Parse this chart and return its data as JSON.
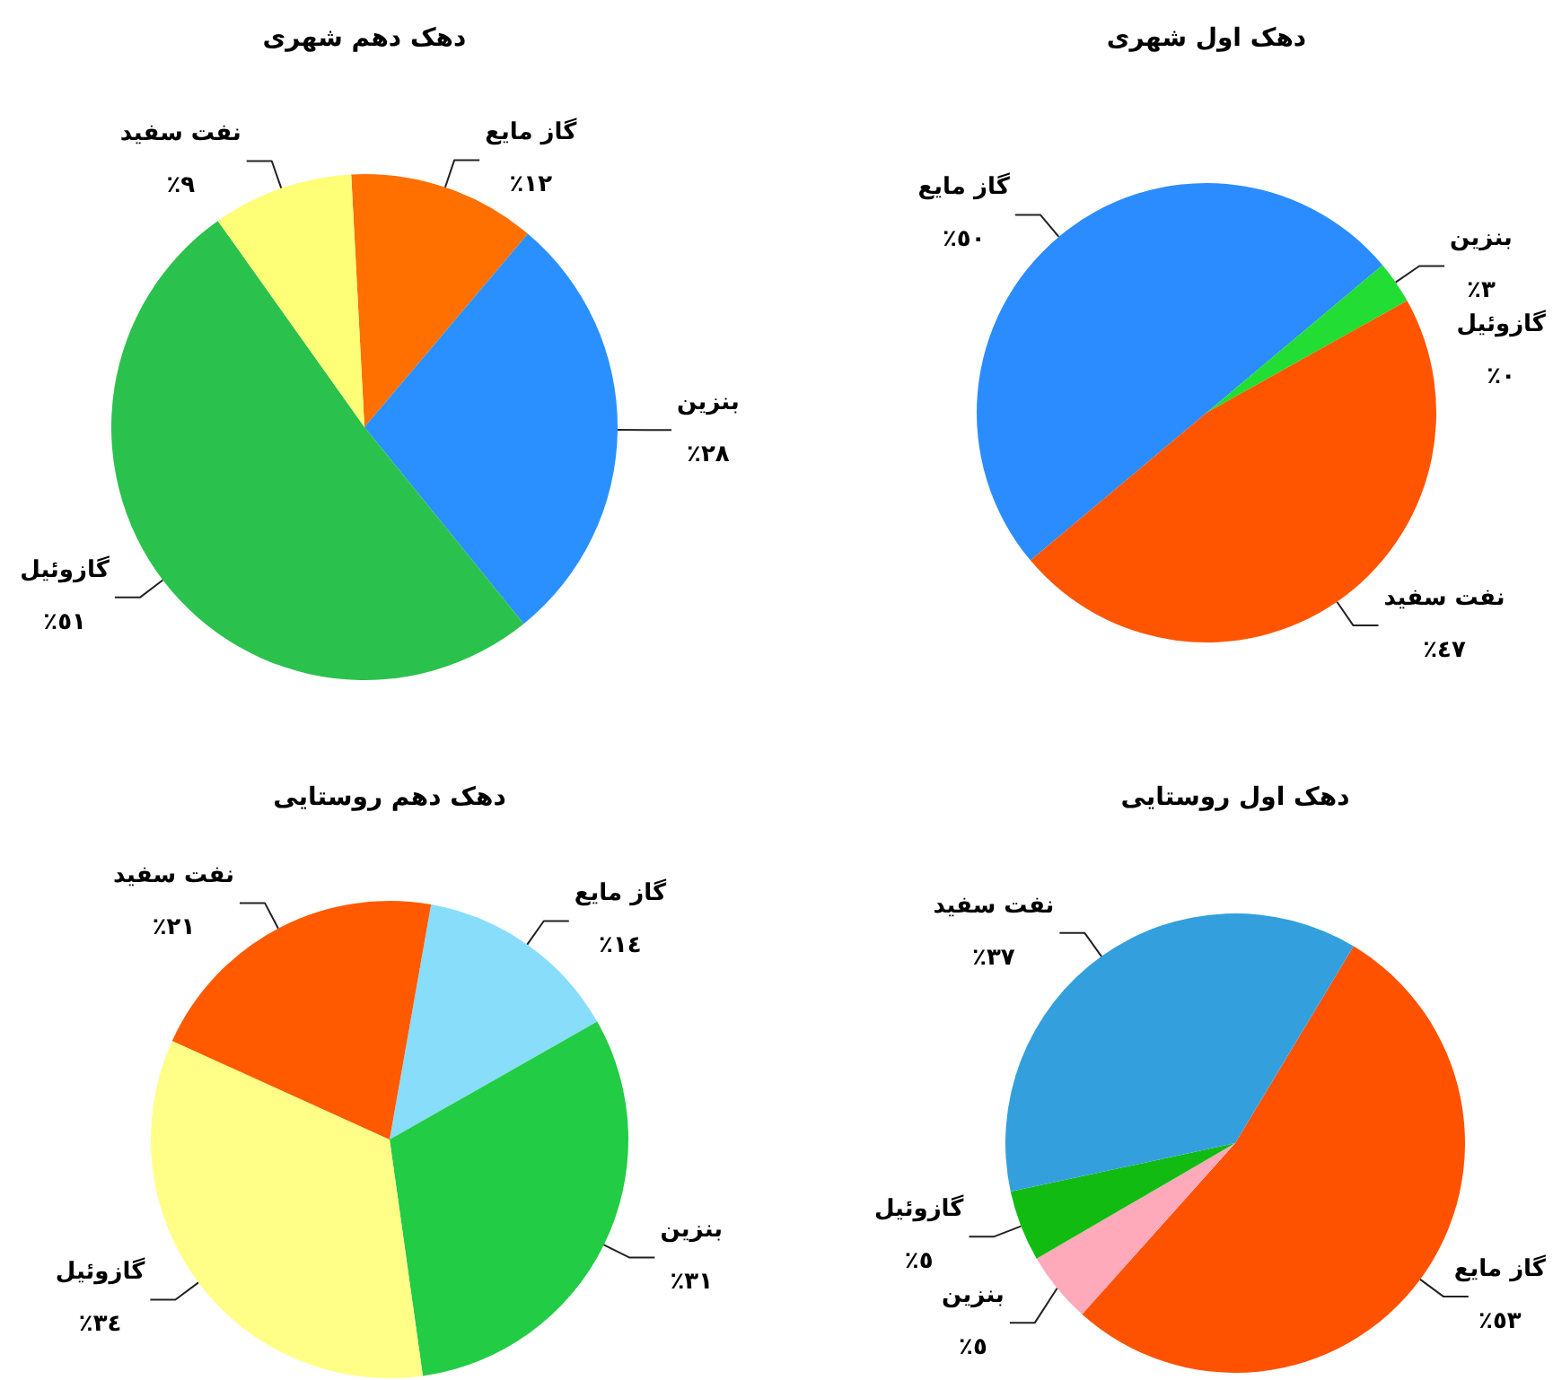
{
  "chart_data": [
    {
      "type": "pie",
      "title": "دهک اول شهری",
      "categories": [
        "گاز مایع",
        "بنزین",
        "گازوئیل",
        "نفت سفید"
      ],
      "values": [
        50,
        3,
        0,
        47
      ],
      "colors": [
        "#2b8cff",
        "#22dd33",
        "#339966",
        "#ff5500"
      ],
      "value_labels": [
        "٥٠٪",
        "٣٪",
        "٠٪",
        "٤٧٪"
      ]
    },
    {
      "type": "pie",
      "title": "دهک دهم شهری",
      "categories": [
        "گاز مایع",
        "بنزین",
        "گازوئیل",
        "نفت سفید"
      ],
      "values": [
        12,
        28,
        51,
        9
      ],
      "colors": [
        "#ff7000",
        "#2a90ff",
        "#2ac24c",
        "#ffff77"
      ],
      "value_labels": [
        "١٢٪",
        "٢٨٪",
        "٥١٪",
        "٩٪"
      ]
    },
    {
      "type": "pie",
      "title": "دهک اول روستایی",
      "categories": [
        "گاز مایع",
        "بنزین",
        "گازوئیل",
        "نفت سفید"
      ],
      "values": [
        53,
        5,
        5,
        37
      ],
      "colors": [
        "#ff5200",
        "#ffaabb",
        "#11bb11",
        "#33a0dd"
      ],
      "value_labels": [
        "٥٣٪",
        "٥٪",
        "٥٪",
        "٣٧٪"
      ]
    },
    {
      "type": "pie",
      "title": "دهک دهم روستایی",
      "categories": [
        "گاز مایع",
        "بنزین",
        "گازوئیل",
        "نفت سفید"
      ],
      "values": [
        14,
        31,
        34,
        21
      ],
      "colors": [
        "#88ddfa",
        "#22cc44",
        "#ffff88",
        "#ff5a00"
      ],
      "value_labels": [
        "١٤٪",
        "٣١٪",
        "٣٤٪",
        "٢١٪"
      ]
    }
  ]
}
